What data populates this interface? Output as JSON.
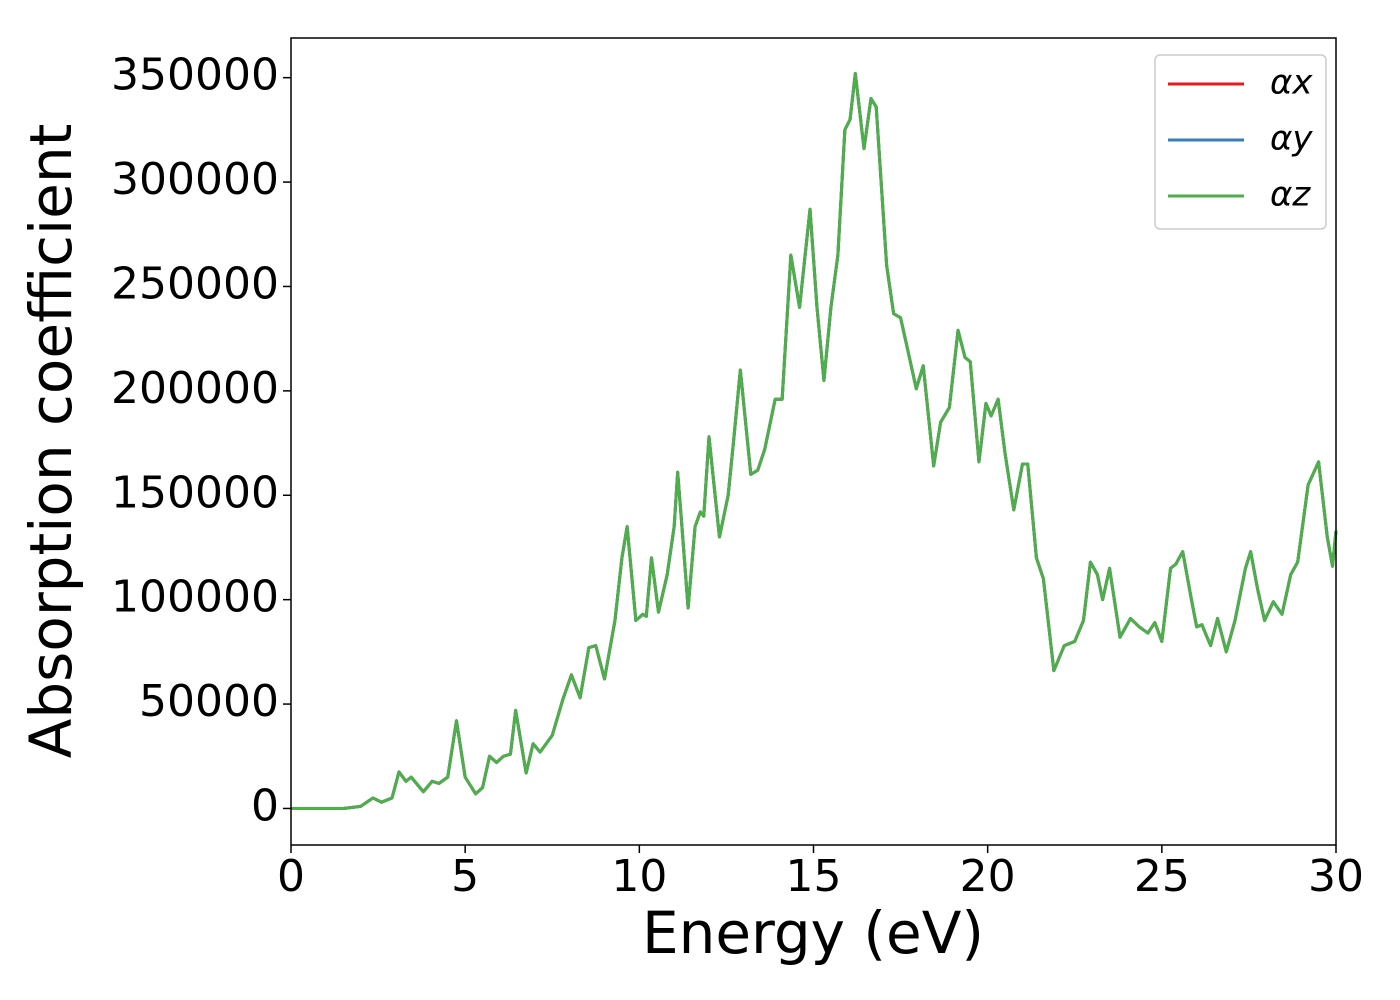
{
  "chart_data": {
    "type": "line",
    "xlabel": "Energy (eV)",
    "ylabel": "Absorption coefficient",
    "x": [
      0,
      1.5,
      2.0,
      2.35,
      2.6,
      2.9,
      3.1,
      3.3,
      3.45,
      3.8,
      4.05,
      4.25,
      4.5,
      4.75,
      5.0,
      5.3,
      5.5,
      5.7,
      5.9,
      6.1,
      6.3,
      6.45,
      6.75,
      6.95,
      7.15,
      7.5,
      7.8,
      8.05,
      8.3,
      8.55,
      8.75,
      9.0,
      9.3,
      9.5,
      9.65,
      9.9,
      10.1,
      10.2,
      10.35,
      10.55,
      10.8,
      11.0,
      11.1,
      11.2,
      11.4,
      11.6,
      11.75,
      11.85,
      12.0,
      12.3,
      12.55,
      12.7,
      12.9,
      13.2,
      13.4,
      13.6,
      13.9,
      14.1,
      14.35,
      14.6,
      14.9,
      15.1,
      15.3,
      15.5,
      15.7,
      15.9,
      16.05,
      16.2,
      16.45,
      16.65,
      16.8,
      17.1,
      17.3,
      17.5,
      17.7,
      17.95,
      18.15,
      18.45,
      18.65,
      18.9,
      19.15,
      19.35,
      19.5,
      19.75,
      19.95,
      20.1,
      20.3,
      20.5,
      20.75,
      21.0,
      21.15,
      21.4,
      21.6,
      21.9,
      22.2,
      22.5,
      22.75,
      22.95,
      23.15,
      23.3,
      23.5,
      23.8,
      24.1,
      24.35,
      24.6,
      24.8,
      25.0,
      25.25,
      25.4,
      25.6,
      25.85,
      26.0,
      26.15,
      26.4,
      26.6,
      26.85,
      27.1,
      27.4,
      27.55,
      27.75,
      27.95,
      28.2,
      28.45,
      28.7,
      28.9,
      29.2,
      29.5,
      29.75,
      29.9,
      30.0
    ],
    "series": [
      {
        "name": "αx",
        "color": "#e41a1c",
        "values": [
          0,
          0,
          1000,
          5000,
          3000,
          5000,
          17500,
          13000,
          15000,
          8000,
          13000,
          12000,
          15000,
          42000,
          15000,
          7000,
          10000,
          25000,
          22000,
          25000,
          26000,
          47000,
          17000,
          31000,
          27000,
          35000,
          52000,
          64000,
          53000,
          77000,
          78000,
          62000,
          90000,
          120000,
          135000,
          90000,
          93000,
          92000,
          120000,
          94000,
          112000,
          135000,
          161000,
          140000,
          96000,
          135000,
          142000,
          140000,
          178000,
          130000,
          150000,
          175000,
          210000,
          160000,
          162000,
          172000,
          196000,
          196000,
          265000,
          240000,
          287000,
          240000,
          205000,
          240000,
          265000,
          325000,
          330000,
          352000,
          316000,
          340000,
          336000,
          260000,
          237000,
          235000,
          220000,
          201000,
          212000,
          164000,
          185000,
          192000,
          229000,
          216000,
          214000,
          166000,
          194000,
          188000,
          196000,
          170000,
          143000,
          165000,
          165000,
          120000,
          110000,
          66000,
          78000,
          80000,
          90000,
          118000,
          112000,
          100000,
          115000,
          82000,
          91000,
          87000,
          84000,
          89000,
          80000,
          115000,
          117000,
          123000,
          100000,
          87000,
          88000,
          78000,
          91000,
          75000,
          90000,
          115000,
          123000,
          105000,
          90000,
          99000,
          93000,
          112000,
          118000,
          155000,
          166000,
          130000,
          116000,
          133000
        ]
      },
      {
        "name": "αy",
        "color": "#377eb8",
        "values": [
          0,
          0,
          1000,
          5000,
          3000,
          5000,
          17500,
          13000,
          15000,
          8000,
          13000,
          12000,
          15000,
          42000,
          15000,
          7000,
          10000,
          25000,
          22000,
          25000,
          26000,
          47000,
          17000,
          31000,
          27000,
          35000,
          52000,
          64000,
          53000,
          77000,
          78000,
          62000,
          90000,
          120000,
          135000,
          90000,
          93000,
          92000,
          120000,
          94000,
          112000,
          135000,
          161000,
          140000,
          96000,
          135000,
          142000,
          140000,
          178000,
          130000,
          150000,
          175000,
          210000,
          160000,
          162000,
          172000,
          196000,
          196000,
          265000,
          240000,
          287000,
          240000,
          205000,
          240000,
          265000,
          325000,
          330000,
          352000,
          316000,
          340000,
          336000,
          260000,
          237000,
          235000,
          220000,
          201000,
          212000,
          164000,
          185000,
          192000,
          229000,
          216000,
          214000,
          166000,
          194000,
          188000,
          196000,
          170000,
          143000,
          165000,
          165000,
          120000,
          110000,
          66000,
          78000,
          80000,
          90000,
          118000,
          112000,
          100000,
          115000,
          82000,
          91000,
          87000,
          84000,
          89000,
          80000,
          115000,
          117000,
          123000,
          100000,
          87000,
          88000,
          78000,
          91000,
          75000,
          90000,
          115000,
          123000,
          105000,
          90000,
          99000,
          93000,
          112000,
          118000,
          155000,
          166000,
          130000,
          116000,
          133000
        ]
      },
      {
        "name": "αz",
        "color": "#4daf4a",
        "values": [
          0,
          0,
          1000,
          5000,
          3000,
          5000,
          17500,
          13000,
          15000,
          8000,
          13000,
          12000,
          15000,
          42000,
          15000,
          7000,
          10000,
          25000,
          22000,
          25000,
          26000,
          47000,
          17000,
          31000,
          27000,
          35000,
          52000,
          64000,
          53000,
          77000,
          78000,
          62000,
          90000,
          120000,
          135000,
          90000,
          93000,
          92000,
          120000,
          94000,
          112000,
          135000,
          161000,
          140000,
          96000,
          135000,
          142000,
          140000,
          178000,
          130000,
          150000,
          175000,
          210000,
          160000,
          162000,
          172000,
          196000,
          196000,
          265000,
          240000,
          287000,
          240000,
          205000,
          240000,
          265000,
          325000,
          330000,
          352000,
          316000,
          340000,
          336000,
          260000,
          237000,
          235000,
          220000,
          201000,
          212000,
          164000,
          185000,
          192000,
          229000,
          216000,
          214000,
          166000,
          194000,
          188000,
          196000,
          170000,
          143000,
          165000,
          165000,
          120000,
          110000,
          66000,
          78000,
          80000,
          90000,
          118000,
          112000,
          100000,
          115000,
          82000,
          91000,
          87000,
          84000,
          89000,
          80000,
          115000,
          117000,
          123000,
          100000,
          87000,
          88000,
          78000,
          91000,
          75000,
          90000,
          115000,
          123000,
          105000,
          90000,
          99000,
          93000,
          112000,
          118000,
          155000,
          166000,
          130000,
          116000,
          133000
        ]
      }
    ],
    "xlim": [
      0,
      30
    ],
    "xticks": [
      0,
      5,
      10,
      15,
      20,
      25,
      30
    ],
    "ylim": [
      -17500,
      369000
    ],
    "yticks": [
      0,
      50000,
      100000,
      150000,
      200000,
      250000,
      300000,
      350000
    ],
    "grid": false,
    "legend": "upper right"
  }
}
